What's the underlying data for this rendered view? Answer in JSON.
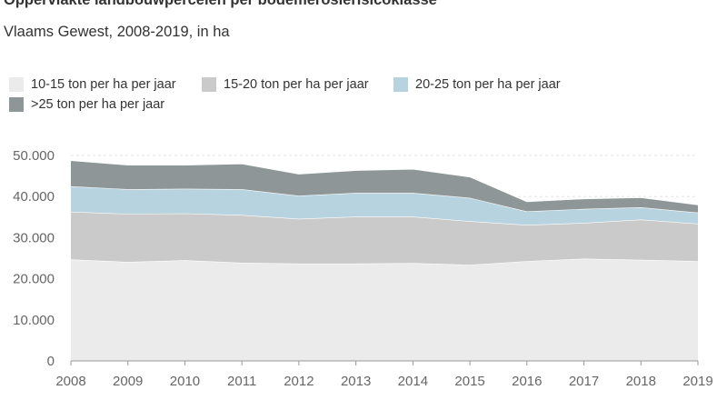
{
  "chart_data": {
    "type": "area",
    "stacked": true,
    "title": "Oppervlakte landbouwpercelen per bodemerosierisicoklasse",
    "subtitle": "Vlaams Gewest, 2008-2019, in ha",
    "x": [
      "2008",
      "2009",
      "2010",
      "2011",
      "2012",
      "2013",
      "2014",
      "2015",
      "2016",
      "2017",
      "2018",
      "2019"
    ],
    "y_ticks": [
      "0",
      "10.000",
      "20.000",
      "30.000",
      "40.000",
      "50.000"
    ],
    "ylim": [
      0,
      50000
    ],
    "legend_position": "top",
    "series": [
      {
        "name": "10-15 ton per ha per jaar",
        "color": "#ebebeb",
        "values": [
          24700,
          24100,
          24500,
          23900,
          23700,
          23700,
          23800,
          23400,
          24300,
          24900,
          24600,
          24300
        ]
      },
      {
        "name": "15-20 ton per ha per jaar",
        "color": "#cacaca",
        "values": [
          11600,
          11700,
          11400,
          11600,
          10900,
          11400,
          11300,
          10600,
          8800,
          8700,
          9800,
          9100
        ]
      },
      {
        "name": "20-25 ton per ha per jaar",
        "color": "#b6d3df",
        "values": [
          6200,
          6000,
          6000,
          6300,
          5600,
          5800,
          5800,
          5700,
          3300,
          3400,
          3000,
          2700
        ]
      },
      {
        "name": ">25 ton per ha per jaar",
        "color": "#8f9698",
        "values": [
          6300,
          5900,
          5800,
          6200,
          5300,
          5500,
          5800,
          5100,
          2400,
          2500,
          2400,
          1900
        ]
      }
    ]
  }
}
